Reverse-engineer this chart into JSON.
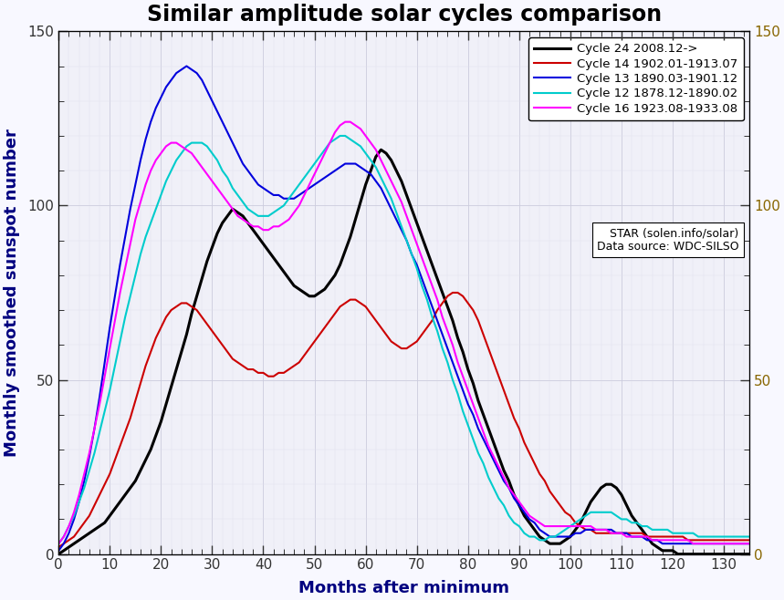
{
  "title": "Similar amplitude solar cycles comparison",
  "xlabel": "Months after minimum",
  "ylabel": "Monthly smoothed sunspot number",
  "xlim": [
    0,
    135
  ],
  "ylim": [
    0,
    150
  ],
  "xticks": [
    0,
    10,
    20,
    30,
    40,
    50,
    60,
    70,
    80,
    90,
    100,
    110,
    120,
    130
  ],
  "yticks": [
    0,
    50,
    100,
    150
  ],
  "legend_entries": [
    "Cycle 24 2008.12->",
    "Cycle 14 1902.01-1913.07",
    "Cycle 13 1890.03-1901.12",
    "Cycle 12 1878.12-1890.02",
    "Cycle 16 1923.08-1933.08"
  ],
  "line_colors": [
    "#000000",
    "#cc0000",
    "#0000dd",
    "#00cccc",
    "#ff00ff"
  ],
  "line_widths": [
    2.2,
    1.5,
    1.5,
    1.5,
    1.5
  ],
  "annotation1": "STAR (solen.info/solar)",
  "annotation2": "Data source: WDC-SILSO",
  "bg_color": "#f8f8ff",
  "plot_bg": "#f0f0f8",
  "grid_major_color": "#ccccdd",
  "grid_minor_color": "#e0e0ee",
  "title_fontsize": 17,
  "axis_label_fontsize": 13,
  "tick_fontsize": 11,
  "legend_fontsize": 9.5,
  "annot_fontsize": 9,
  "ylabel_color": "#000080",
  "xlabel_color": "#000080",
  "right_tick_color": "#886600"
}
